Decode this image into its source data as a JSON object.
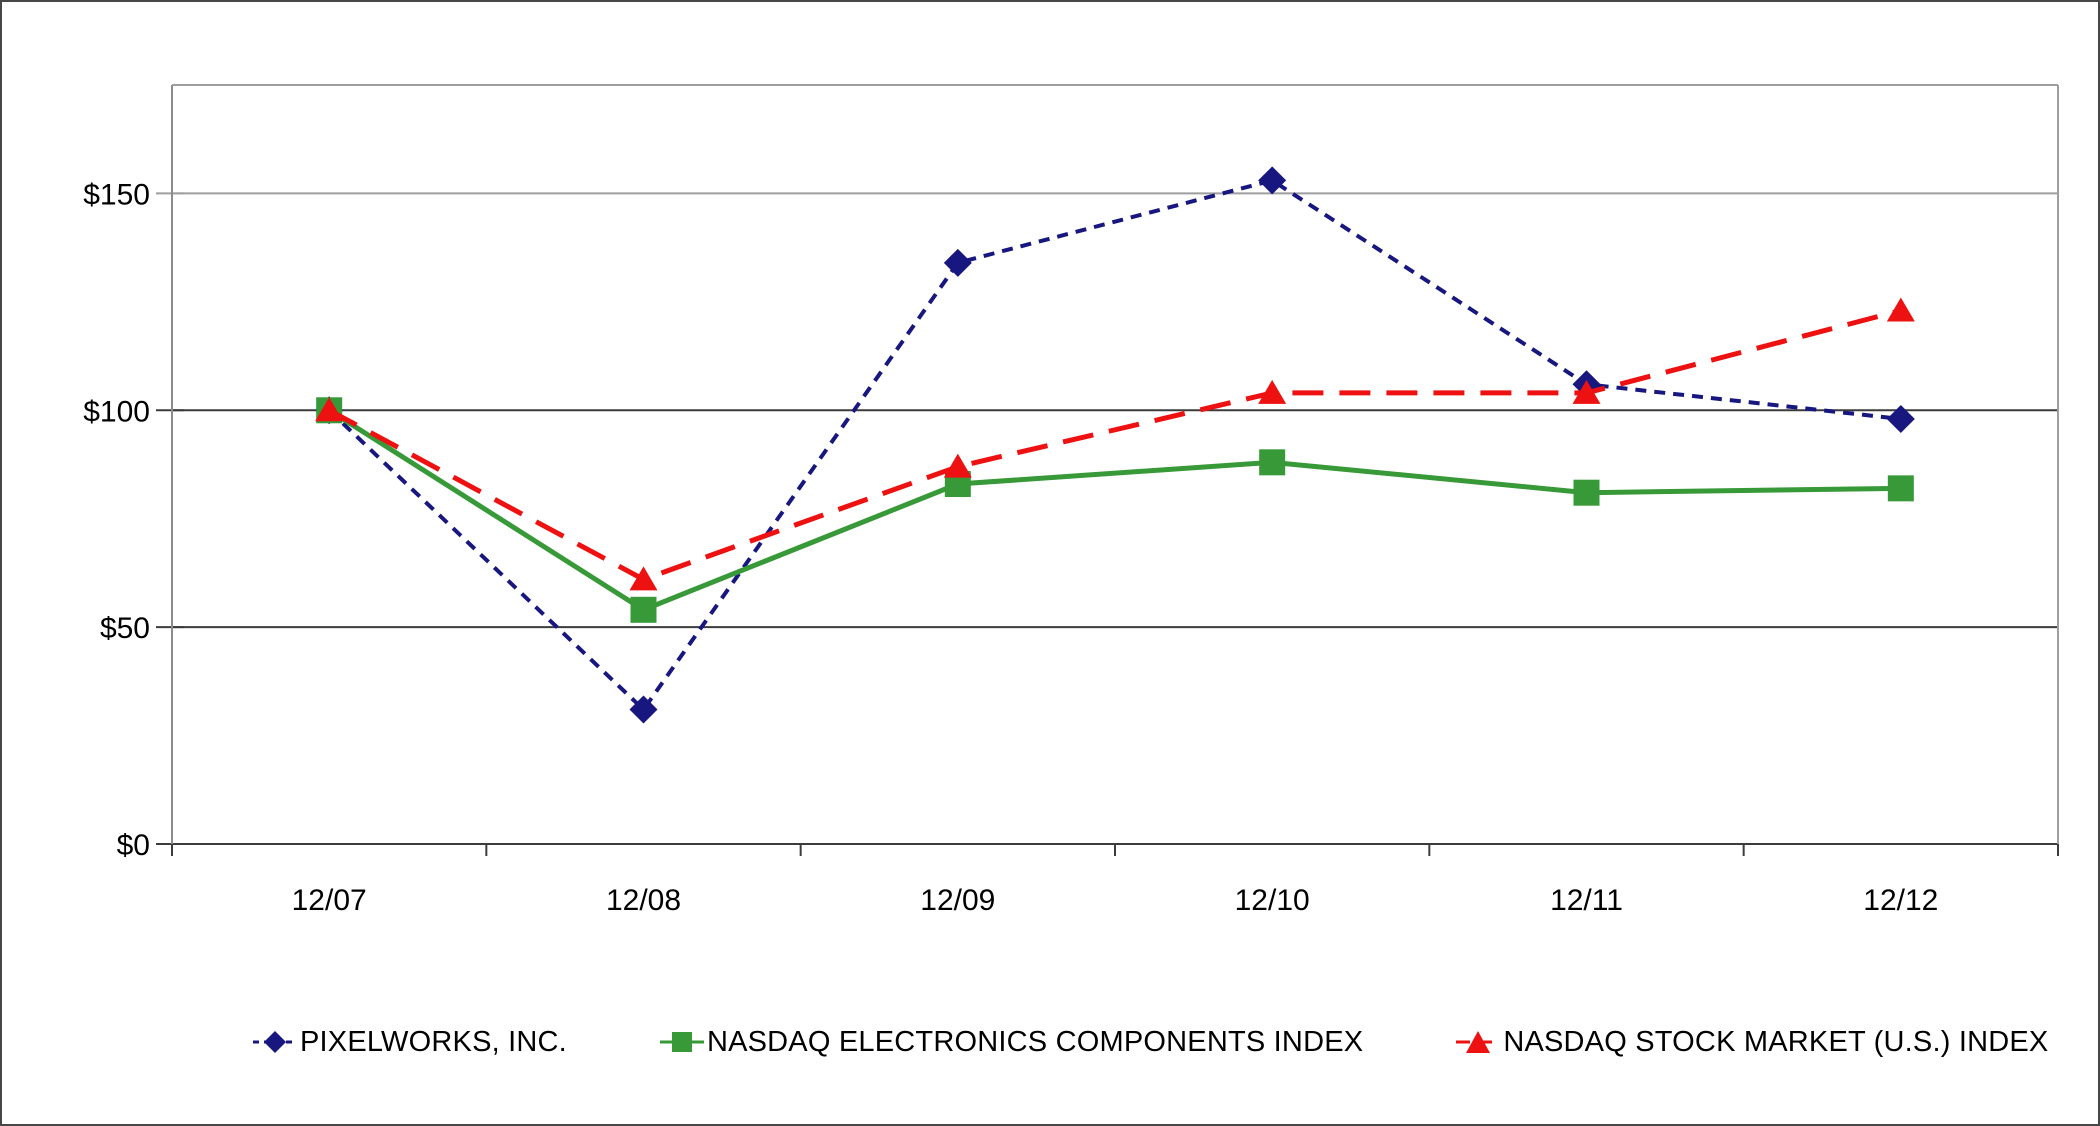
{
  "chart_data": {
    "type": "line",
    "categories": [
      "12/07",
      "12/08",
      "12/09",
      "12/10",
      "12/11",
      "12/12"
    ],
    "series": [
      {
        "name": "PIXELWORKS, INC.",
        "color": "#17177F",
        "marker": "diamond",
        "line_style": "dotted",
        "values": [
          100,
          31,
          134,
          153,
          106,
          98
        ]
      },
      {
        "name": "NASDAQ ELECTRONICS COMPONENTS INDEX",
        "color": "#379937",
        "marker": "square",
        "line_style": "solid",
        "values": [
          100,
          54,
          83,
          88,
          81,
          82
        ]
      },
      {
        "name": "NASDAQ STOCK MARKET (U.S.) INDEX",
        "color": "#EE1111",
        "marker": "triangle",
        "line_style": "long-dash",
        "values": [
          100,
          61,
          87,
          104,
          104,
          123
        ]
      }
    ],
    "y_axis": {
      "ticks": [
        {
          "label": "$0",
          "value": 0
        },
        {
          "label": "$50",
          "value": 50
        },
        {
          "label": "$100",
          "value": 100
        },
        {
          "label": "$150",
          "value": 150
        }
      ],
      "range": [
        0,
        175
      ]
    },
    "grid": "horizontal",
    "legend_position": "bottom",
    "colors": {
      "grid_major": "#3c3c3c",
      "grid_minor": "#9e9e9e",
      "axis": "#8c8c8c",
      "border": "#9e9e9e",
      "text": "#000000",
      "background": "#ffffff"
    }
  }
}
